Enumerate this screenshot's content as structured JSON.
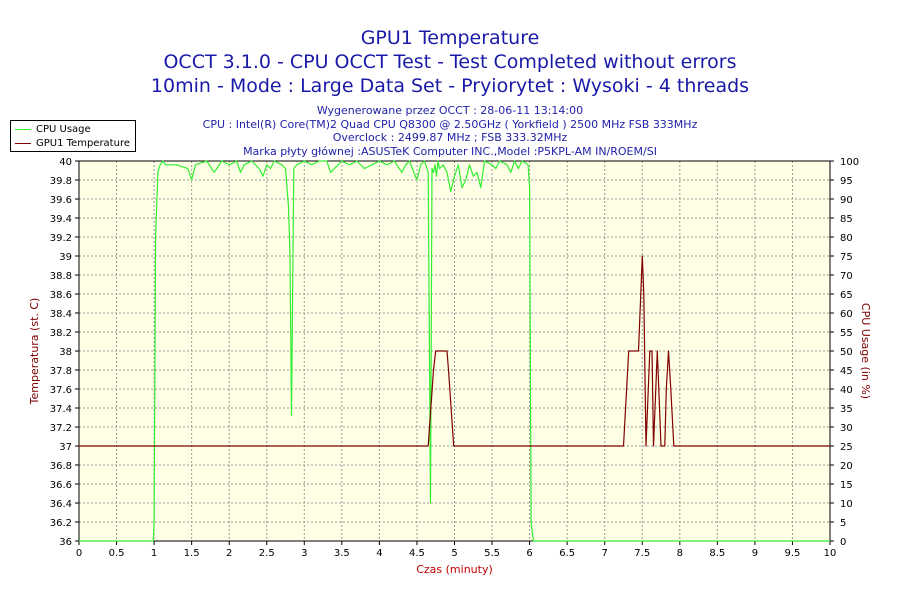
{
  "chart_data": {
    "type": "line",
    "title": "GPU1 Temperature",
    "subtitle": "OCCT 3.1.0 - CPU OCCT Test - Test Completed without errors",
    "subtitle2": "10min - Mode : Large Data Set - Pryiorytet : Wysoki - 4 threads",
    "info_lines": [
      "Wygenerowane przez OCCT : 28-06-11 13:14:00",
      "CPU : Intel(R) Core(TM)2 Quad CPU Q8300 @ 2.50GHz ( Yorkfield ) 2500 MHz FSB 333MHz",
      "Overclock : 2499.87 MHz ; FSB 333.32MHz",
      "Marka płyty głównej :ASUSTeK Computer INC.,Model :P5KPL-AM IN/ROEM/SI"
    ],
    "xlabel": "Czas (minuty)",
    "ylabel_left": "Temperatura (st. C)",
    "ylabel_right": "CPU Usage (in %)",
    "xlim": [
      0,
      10
    ],
    "ylim_left": [
      36,
      40
    ],
    "ylim_right": [
      0,
      100
    ],
    "x_ticks": [
      "0",
      "0.5",
      "1",
      "1.5",
      "2",
      "2.5",
      "3",
      "3.5",
      "4",
      "4.5",
      "5",
      "5.5",
      "6",
      "6.5",
      "7",
      "7.5",
      "8",
      "8.5",
      "9",
      "9.5",
      "10"
    ],
    "y_left_ticks": [
      "36",
      "36.2",
      "36.4",
      "36.6",
      "36.8",
      "37",
      "37.2",
      "37.4",
      "37.6",
      "37.8",
      "38",
      "38.2",
      "38.4",
      "38.6",
      "38.8",
      "39",
      "39.2",
      "39.4",
      "39.6",
      "39.8",
      "40"
    ],
    "y_right_ticks": [
      "0",
      "5",
      "10",
      "15",
      "20",
      "25",
      "30",
      "35",
      "40",
      "45",
      "50",
      "55",
      "60",
      "65",
      "70",
      "75",
      "80",
      "85",
      "90",
      "95",
      "100"
    ],
    "grid": true,
    "legend_position": "top-left",
    "series": [
      {
        "name": "CPU Usage",
        "axis": "right",
        "color": "#33ee33",
        "x": [
          0,
          0.99,
          1.0,
          1.02,
          1.05,
          1.08,
          1.12,
          1.15,
          1.3,
          1.45,
          1.5,
          1.55,
          1.7,
          1.8,
          1.9,
          2.0,
          2.1,
          2.15,
          2.2,
          2.3,
          2.4,
          2.45,
          2.5,
          2.55,
          2.6,
          2.7,
          2.75,
          2.79,
          2.81,
          2.83,
          2.86,
          2.9,
          3.0,
          3.1,
          3.2,
          3.3,
          3.35,
          3.4,
          3.45,
          3.5,
          3.6,
          3.7,
          3.8,
          3.9,
          4.0,
          4.1,
          4.2,
          4.3,
          4.35,
          4.4,
          4.5,
          4.55,
          4.6,
          4.65,
          4.68,
          4.7,
          4.72,
          4.74,
          4.76,
          4.78,
          4.8,
          4.85,
          4.9,
          4.95,
          5.0,
          5.05,
          5.1,
          5.15,
          5.2,
          5.25,
          5.3,
          5.35,
          5.4,
          5.5,
          5.55,
          5.6,
          5.7,
          5.75,
          5.8,
          5.85,
          5.9,
          5.98,
          6.0,
          6.02,
          6.05,
          10
        ],
        "values": [
          0,
          0,
          5,
          80,
          97,
          99,
          100,
          99,
          99,
          98,
          95,
          99,
          100,
          97,
          100,
          99,
          100,
          97,
          99,
          100,
          98,
          96,
          99,
          98,
          100,
          99,
          98,
          88,
          75,
          33,
          98,
          99,
          100,
          99,
          100,
          100,
          97,
          98,
          99,
          100,
          99,
          100,
          98,
          99,
          100,
          99,
          100,
          97,
          99,
          100,
          95,
          99,
          100,
          97,
          10,
          98,
          97,
          99,
          96,
          100,
          98,
          99,
          97,
          92,
          96,
          99,
          93,
          95,
          99,
          96,
          97,
          93,
          100,
          99,
          98,
          100,
          99,
          97,
          100,
          98,
          100,
          99,
          93,
          5,
          0,
          0
        ]
      },
      {
        "name": "GPU1 Temperature",
        "axis": "left",
        "color": "#800000",
        "x": [
          0,
          4.65,
          4.72,
          4.75,
          4.9,
          4.92,
          4.99,
          7.25,
          7.32,
          7.45,
          7.5,
          7.52,
          7.55,
          7.6,
          7.63,
          7.65,
          7.7,
          7.75,
          7.77,
          7.8,
          7.82,
          7.85,
          7.88,
          7.92,
          10
        ],
        "values": [
          37,
          37,
          37.8,
          38,
          38,
          37.8,
          37,
          37,
          38,
          38,
          39,
          38.6,
          37,
          38,
          38,
          37,
          38,
          37,
          37,
          37,
          37.6,
          38,
          37.6,
          37,
          37
        ]
      }
    ]
  },
  "colors": {
    "title": "#1a1aa8",
    "info": "#2222aa",
    "plot_background": "#ffffe6",
    "grid": "#999999",
    "left_axis": "#800000",
    "right_axis": "#000080",
    "xlabel": "#c00000"
  }
}
